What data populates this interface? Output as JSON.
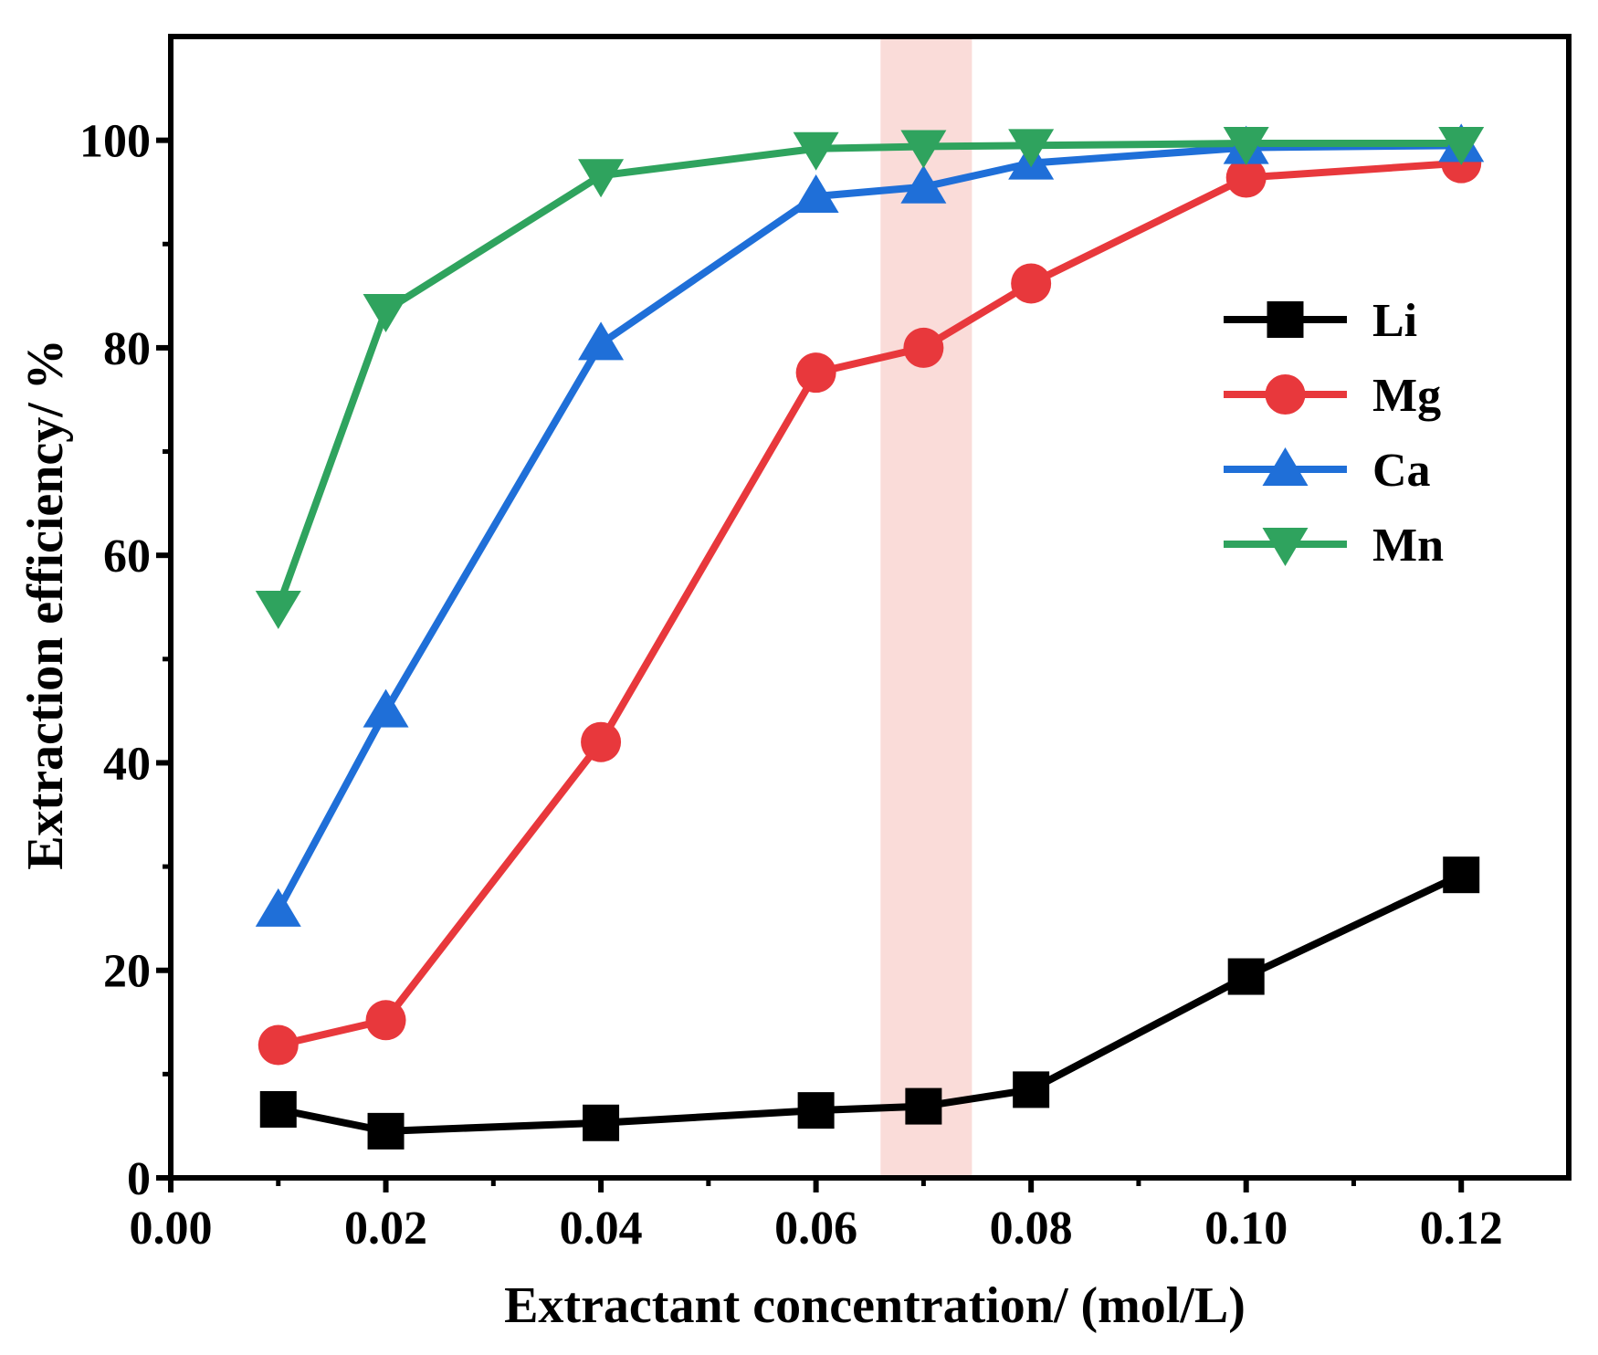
{
  "chart_data": {
    "type": "line",
    "title": "",
    "xlabel": "Extractant concentration/ (mol/L)",
    "ylabel": "Extraction efficiency/ %",
    "xlim": [
      0.0,
      0.13
    ],
    "ylim": [
      0,
      110
    ],
    "x_ticks": [
      0.0,
      0.02,
      0.04,
      0.06,
      0.08,
      0.1,
      0.12
    ],
    "x_tick_labels": [
      "0.00",
      "0.02",
      "0.04",
      "0.06",
      "0.08",
      "0.10",
      "0.12"
    ],
    "y_ticks": [
      0,
      20,
      40,
      60,
      80,
      100
    ],
    "y_tick_labels": [
      "0",
      "20",
      "40",
      "60",
      "80",
      "100"
    ],
    "highlight_band": {
      "x_range": [
        0.066,
        0.0745
      ],
      "color": "#fadcd9"
    },
    "x": [
      0.01,
      0.02,
      0.04,
      0.06,
      0.07,
      0.08,
      0.1,
      0.12
    ],
    "series": [
      {
        "name": "Li",
        "marker": "square",
        "color": "#000000",
        "values": [
          6.6,
          4.5,
          5.3,
          6.5,
          6.9,
          8.5,
          19.4,
          29.2
        ]
      },
      {
        "name": "Mg",
        "marker": "circle",
        "color": "#e8383c",
        "values": [
          12.8,
          15.2,
          42.0,
          77.6,
          80.0,
          86.2,
          96.4,
          97.8
        ]
      },
      {
        "name": "Ca",
        "marker": "triangle-up",
        "color": "#1f6fd8",
        "values": [
          25.8,
          45.0,
          80.4,
          94.6,
          95.5,
          97.8,
          99.3,
          99.5
        ]
      },
      {
        "name": "Mn",
        "marker": "triangle-down",
        "color": "#2fa35e",
        "values": [
          55.0,
          83.6,
          96.6,
          99.2,
          99.4,
          99.5,
          99.7,
          99.7
        ]
      }
    ],
    "legend_position": "right"
  }
}
